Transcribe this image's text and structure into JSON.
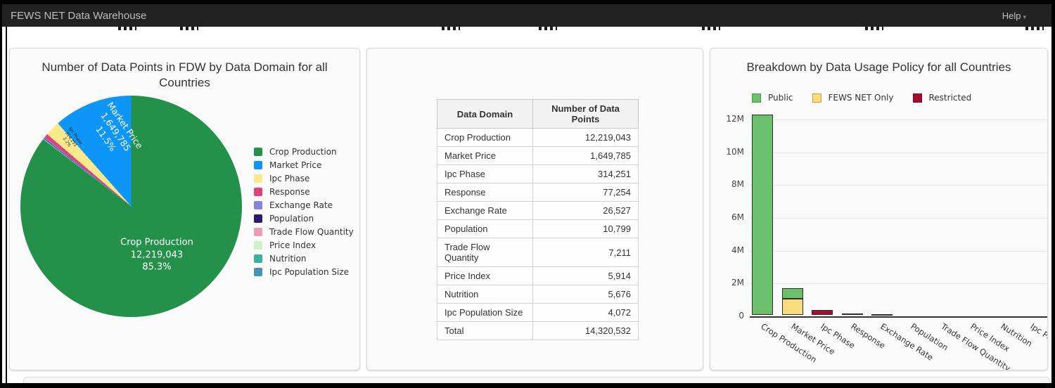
{
  "navbar": {
    "title": "FEWS NET Data Warehouse",
    "help_label": "Help",
    "help_caret": "▾"
  },
  "pie_panel": {
    "title": "Number of Data Points in FDW by Data Domain for all Countries",
    "labels": {
      "crop": {
        "line1": "Crop Production",
        "line2": "12,219,043",
        "line3": "85.3%"
      },
      "market": {
        "line1": "Market Price",
        "line2": "1,649,785",
        "line3": "11.5%"
      },
      "ipc": {
        "line1": "Ipc Phase",
        "line2": "314,251",
        "line3": "2.2%"
      }
    }
  },
  "table_panel": {
    "headers": [
      "Data Domain",
      "Number of Data Points"
    ],
    "rows": [
      [
        "Crop Production",
        "12,219,043"
      ],
      [
        "Market Price",
        "1,649,785"
      ],
      [
        "Ipc Phase",
        "314,251"
      ],
      [
        "Response",
        "77,254"
      ],
      [
        "Exchange Rate",
        "26,527"
      ],
      [
        "Population",
        "10,799"
      ],
      [
        "Trade Flow Quantity",
        "7,211"
      ],
      [
        "Price Index",
        "5,914"
      ],
      [
        "Nutrition",
        "5,676"
      ],
      [
        "Ipc Population Size",
        "4,072"
      ],
      [
        "Total",
        "14,320,532"
      ]
    ]
  },
  "bar_panel": {
    "title": "Breakdown by Data Usage Policy for all Countries"
  },
  "chart_data": [
    {
      "type": "pie",
      "title": "Number of Data Points in FDW by Data Domain for all Countries",
      "total": 14320532,
      "slices_draw_order": [
        {
          "label": "Crop Production",
          "value": 12219043,
          "percent": "85.3%",
          "color": "#24914a"
        },
        {
          "label": "Ipc Population Size",
          "value": 4072,
          "percent": "0.0%",
          "color": "#4792b6"
        },
        {
          "label": "Nutrition",
          "value": 5676,
          "percent": "0.0%",
          "color": "#36b39a"
        },
        {
          "label": "Price Index",
          "value": 5914,
          "percent": "0.0%",
          "color": "#ccf3c3"
        },
        {
          "label": "Trade Flow Quantity",
          "value": 7211,
          "percent": "0.1%",
          "color": "#eb9db6"
        },
        {
          "label": "Population",
          "value": 10799,
          "percent": "0.1%",
          "color": "#2b1a70"
        },
        {
          "label": "Exchange Rate",
          "value": 26527,
          "percent": "0.2%",
          "color": "#8384dc"
        },
        {
          "label": "Response",
          "value": 77254,
          "percent": "0.5%",
          "color": "#e0417c"
        },
        {
          "label": "Ipc Phase",
          "value": 314251,
          "percent": "2.2%",
          "color": "#fae88d"
        },
        {
          "label": "Market Price",
          "value": 1649785,
          "percent": "11.5%",
          "color": "#0d96f8"
        }
      ],
      "legend": [
        {
          "label": "Crop Production",
          "color": "#24914a"
        },
        {
          "label": "Market Price",
          "color": "#0d96f8"
        },
        {
          "label": "Ipc Phase",
          "color": "#fae88d"
        },
        {
          "label": "Response",
          "color": "#e0417c"
        },
        {
          "label": "Exchange Rate",
          "color": "#8384dc"
        },
        {
          "label": "Population",
          "color": "#2b1a70"
        },
        {
          "label": "Trade Flow Quantity",
          "color": "#eb9db6"
        },
        {
          "label": "Price Index",
          "color": "#ccf3c3"
        },
        {
          "label": "Nutrition",
          "color": "#36b39a"
        },
        {
          "label": "Ipc Population Size",
          "color": "#4792b6"
        }
      ]
    },
    {
      "type": "bar",
      "stacked": true,
      "title": "Breakdown by Data Usage Policy for all Countries",
      "categories": [
        "Crop Production",
        "Market Price",
        "Ipc Phase",
        "Response",
        "Exchange Rate",
        "Population",
        "Trade Flow Quantity",
        "Price Index",
        "Nutrition",
        "Ipc Population Size"
      ],
      "series": [
        {
          "name": "Public",
          "color": "#6cbf6b",
          "border": "#4c9a4c",
          "values": [
            12219043,
            650000,
            0,
            77254,
            26527,
            10799,
            7211,
            5914,
            5676,
            4072
          ]
        },
        {
          "name": "FEWS NET Only",
          "color": "#fadc7d",
          "border": "#c2a040",
          "values": [
            0,
            1000000,
            0,
            0,
            0,
            0,
            0,
            0,
            0,
            0
          ]
        },
        {
          "name": "Restricted",
          "color": "#a50d2d",
          "border": "#7c0b20",
          "values": [
            0,
            0,
            314251,
            0,
            0,
            0,
            0,
            0,
            0,
            0
          ]
        }
      ],
      "y_tick_labels": [
        "0",
        "2M",
        "4M",
        "6M",
        "8M",
        "10M",
        "12M"
      ],
      "ylim": [
        0,
        12000000
      ],
      "legend_position": "top",
      "grid": true
    }
  ]
}
